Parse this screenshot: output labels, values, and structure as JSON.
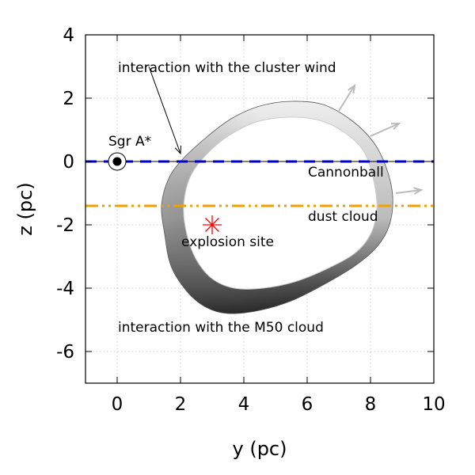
{
  "chart_data": {
    "type": "scatter",
    "title": "",
    "xlabel": "y (pc)",
    "ylabel": "z (pc)",
    "xlim": [
      -1,
      10
    ],
    "ylim": [
      -7,
      4
    ],
    "xticks": [
      0,
      2,
      4,
      6,
      8,
      10
    ],
    "yticks": [
      4,
      2,
      0,
      -2,
      -4,
      -6
    ],
    "xtick_labels": [
      "0",
      "2",
      "4",
      "6",
      "8",
      "10"
    ],
    "ytick_labels": [
      "4",
      "2",
      "0",
      "-2",
      "-4",
      "-6"
    ],
    "grid": true,
    "colors": {
      "cannonball_line": "#0000cc",
      "dust_line": "#f0a000",
      "explosion_marker": "#ff0000",
      "arrow": "#bbbbbb",
      "shell_dark": "#222222",
      "shell_light": "#dddddd"
    },
    "sgr_a": {
      "x": 0,
      "y": 0,
      "label": "Sgr A*"
    },
    "explosion_site": {
      "x": 3,
      "y": -2,
      "label": "explosion site"
    },
    "cannonball_line": {
      "y": 0,
      "label": "Cannonball"
    },
    "dust_cloud_line": {
      "y": -1.4,
      "label": "dust cloud"
    },
    "annotations": {
      "cluster_wind": "interaction with the cluster wind",
      "m50_cloud": "interaction with the M50 cloud"
    },
    "cluster_wind_arrow": {
      "from": [
        1.0,
        3.0
      ],
      "to": [
        2.0,
        0.25
      ]
    },
    "outflow_arrows": [
      {
        "from": [
          7.0,
          1.6
        ],
        "to": [
          7.5,
          2.4
        ]
      },
      {
        "from": [
          8.0,
          0.8
        ],
        "to": [
          8.9,
          1.2
        ]
      },
      {
        "from": [
          8.8,
          -1.0
        ],
        "to": [
          9.6,
          -0.9
        ]
      }
    ],
    "shell_outline": [
      [
        1.6,
        -0.6
      ],
      [
        2.0,
        0.0
      ],
      [
        2.8,
        0.75
      ],
      [
        3.6,
        1.35
      ],
      [
        4.5,
        1.75
      ],
      [
        5.5,
        1.9
      ],
      [
        6.5,
        1.8
      ],
      [
        7.4,
        1.3
      ],
      [
        8.1,
        0.6
      ],
      [
        8.5,
        -0.2
      ],
      [
        8.7,
        -1.1
      ],
      [
        8.6,
        -2.0
      ],
      [
        8.2,
        -2.7
      ],
      [
        7.5,
        -3.3
      ],
      [
        6.5,
        -3.9
      ],
      [
        5.5,
        -4.4
      ],
      [
        4.5,
        -4.7
      ],
      [
        3.5,
        -4.8
      ],
      [
        2.8,
        -4.6
      ],
      [
        2.2,
        -4.1
      ],
      [
        1.7,
        -3.3
      ],
      [
        1.5,
        -2.3
      ],
      [
        1.4,
        -1.4
      ]
    ],
    "shell_inner": [
      [
        2.3,
        -0.5
      ],
      [
        2.8,
        0.2
      ],
      [
        3.5,
        0.8
      ],
      [
        4.4,
        1.25
      ],
      [
        5.4,
        1.4
      ],
      [
        6.4,
        1.3
      ],
      [
        7.2,
        0.9
      ],
      [
        7.8,
        0.3
      ],
      [
        8.1,
        -0.6
      ],
      [
        8.2,
        -1.5
      ],
      [
        8.0,
        -2.3
      ],
      [
        7.5,
        -2.9
      ],
      [
        6.6,
        -3.4
      ],
      [
        5.6,
        -3.8
      ],
      [
        4.6,
        -4.0
      ],
      [
        3.7,
        -4.0
      ],
      [
        3.0,
        -3.7
      ],
      [
        2.5,
        -3.1
      ],
      [
        2.2,
        -2.3
      ],
      [
        2.1,
        -1.4
      ]
    ]
  }
}
